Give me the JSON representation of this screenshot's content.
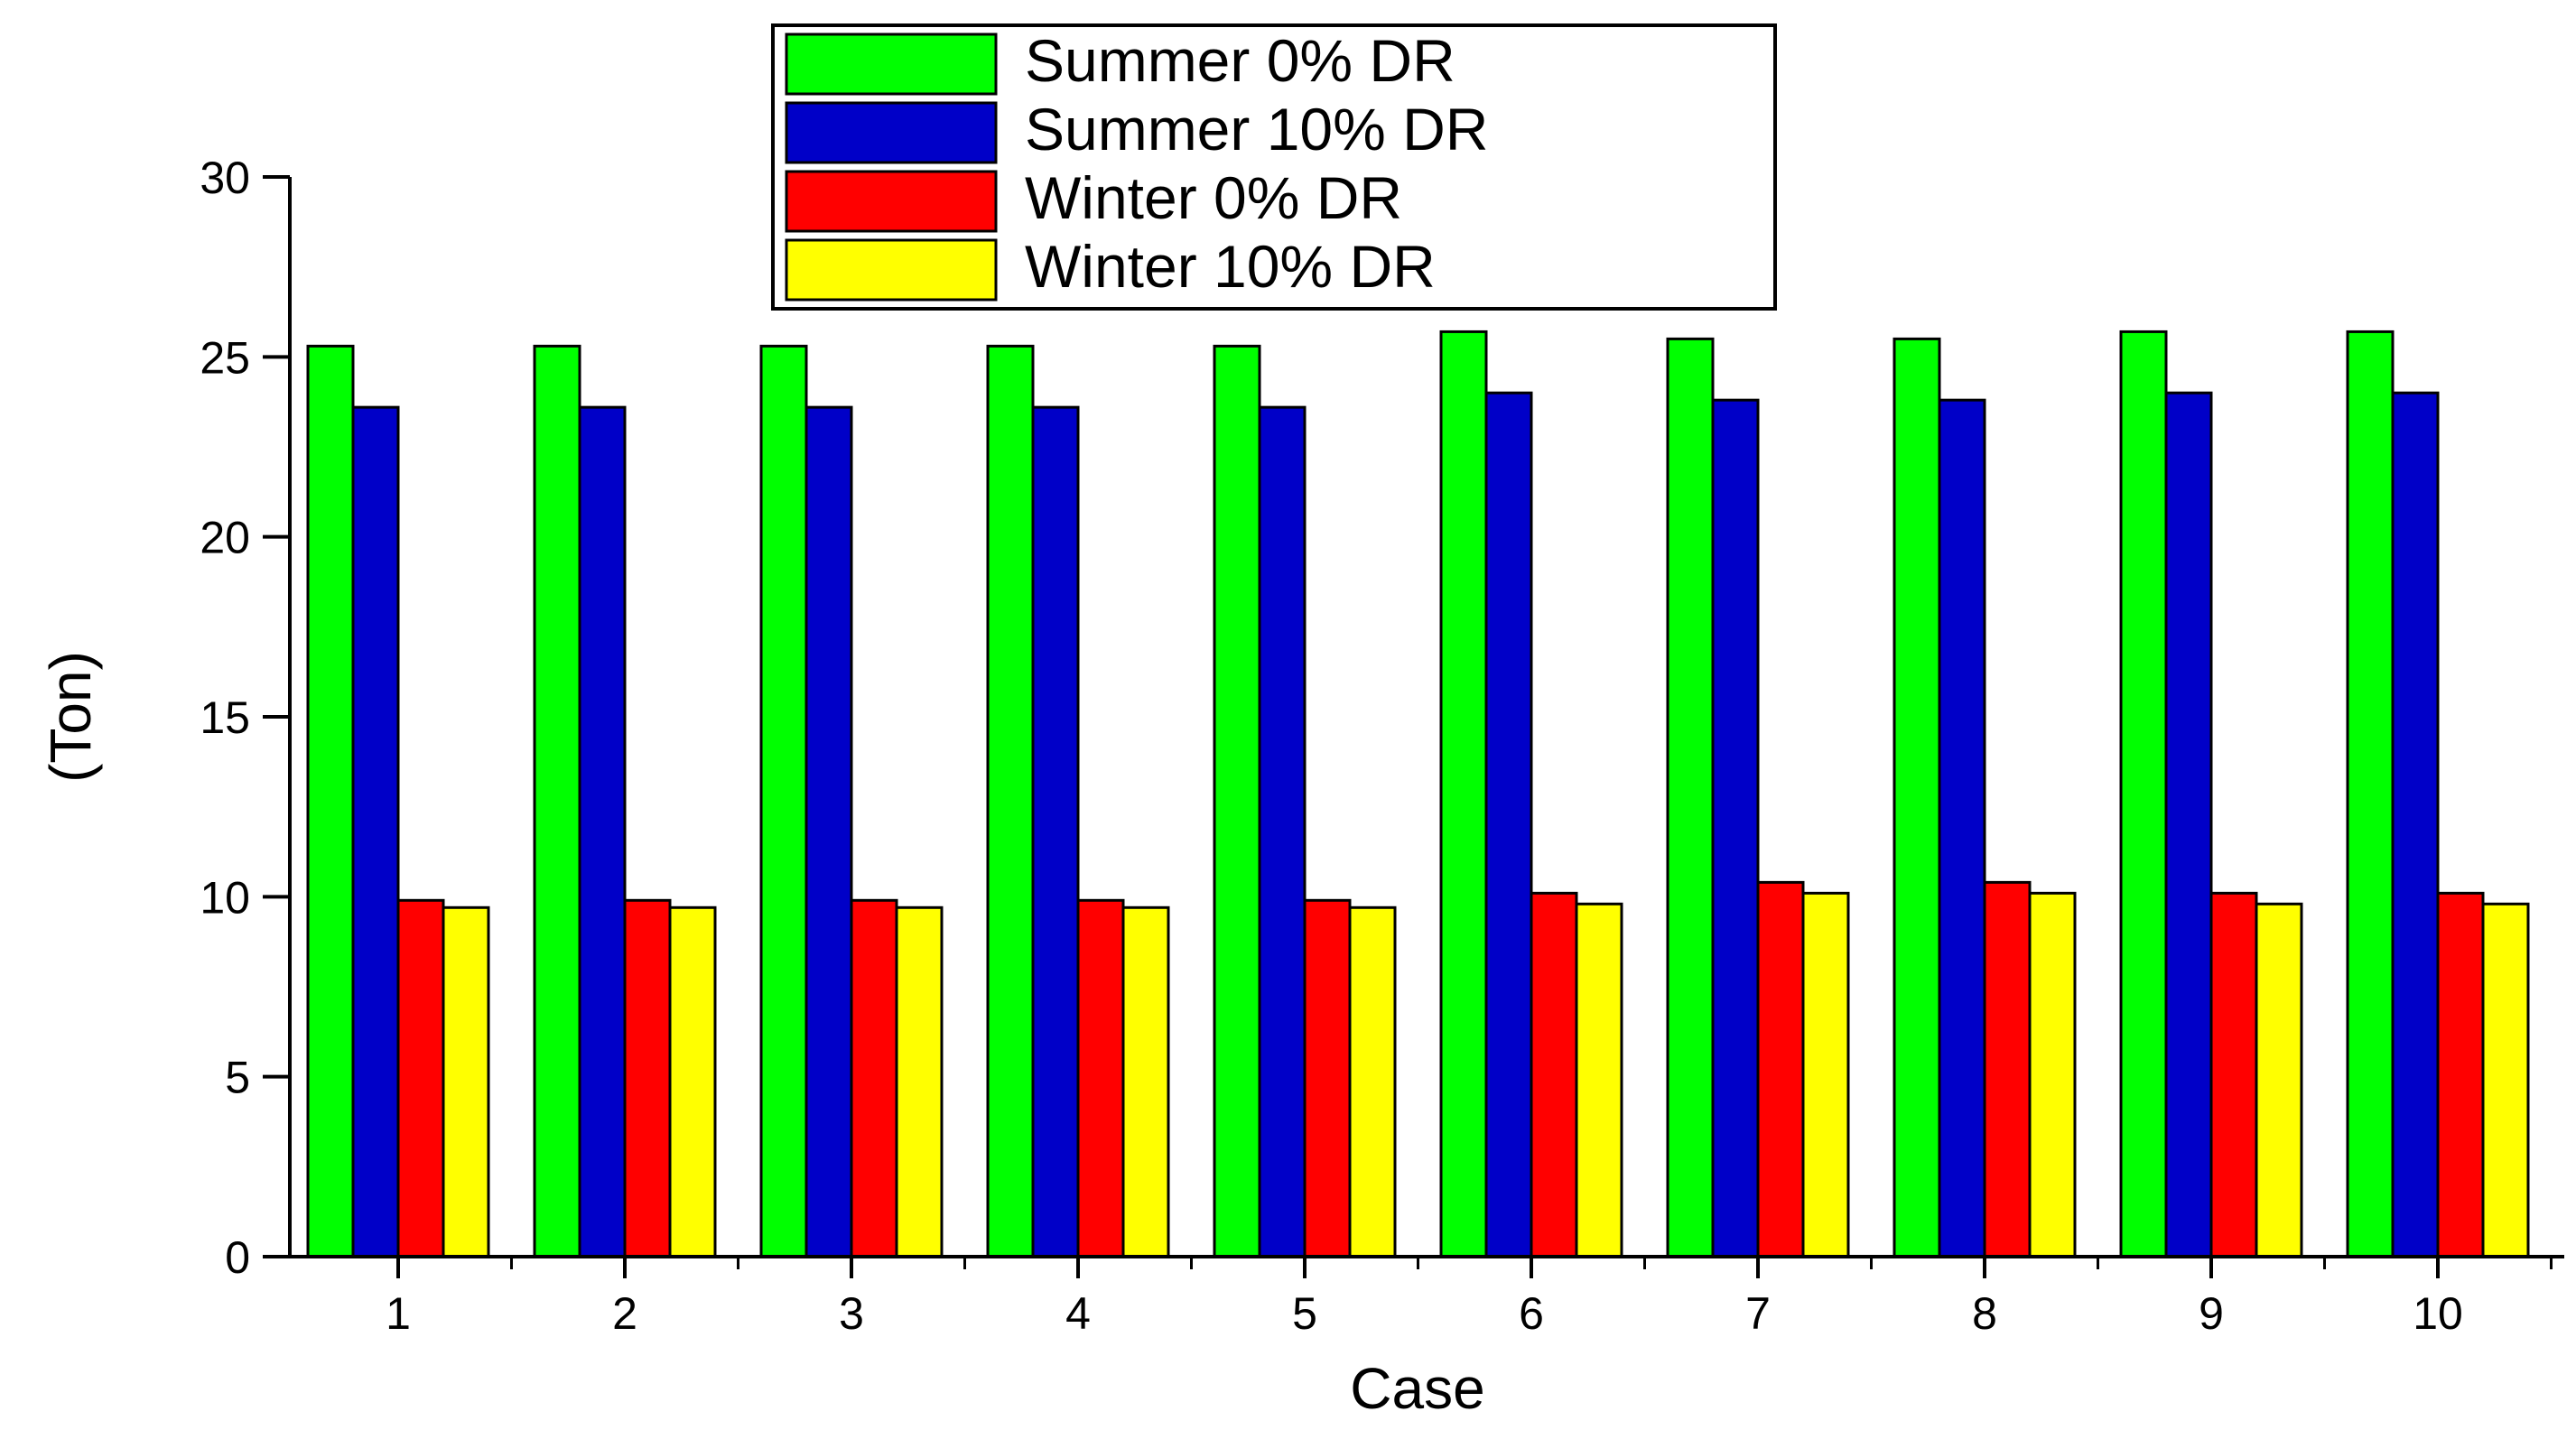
{
  "chart_data": {
    "type": "bar",
    "title": "",
    "xlabel": "Case",
    "ylabel": "(Ton)",
    "ylim": [
      0,
      30
    ],
    "yticks": [
      0,
      5,
      10,
      15,
      20,
      25,
      30
    ],
    "grid": false,
    "legend_position": "top-center",
    "categories": [
      "1",
      "2",
      "3",
      "4",
      "5",
      "6",
      "7",
      "8",
      "9",
      "10"
    ],
    "series": [
      {
        "name": "Summer 0% DR",
        "color": "#00ff00",
        "values": [
          25.3,
          25.3,
          25.3,
          25.3,
          25.3,
          25.7,
          25.5,
          25.5,
          25.7,
          25.7
        ]
      },
      {
        "name": "Summer 10% DR",
        "color": "#0000c8",
        "values": [
          23.6,
          23.6,
          23.6,
          23.6,
          23.6,
          24.0,
          23.8,
          23.8,
          24.0,
          24.0
        ]
      },
      {
        "name": "Winter 0% DR",
        "color": "#ff0000",
        "values": [
          9.9,
          9.9,
          9.9,
          9.9,
          9.9,
          10.1,
          10.4,
          10.4,
          10.1,
          10.1
        ]
      },
      {
        "name": "Winter 10% DR",
        "color": "#ffff00",
        "values": [
          9.7,
          9.7,
          9.7,
          9.7,
          9.7,
          9.8,
          10.1,
          10.1,
          9.8,
          9.8
        ]
      }
    ]
  }
}
